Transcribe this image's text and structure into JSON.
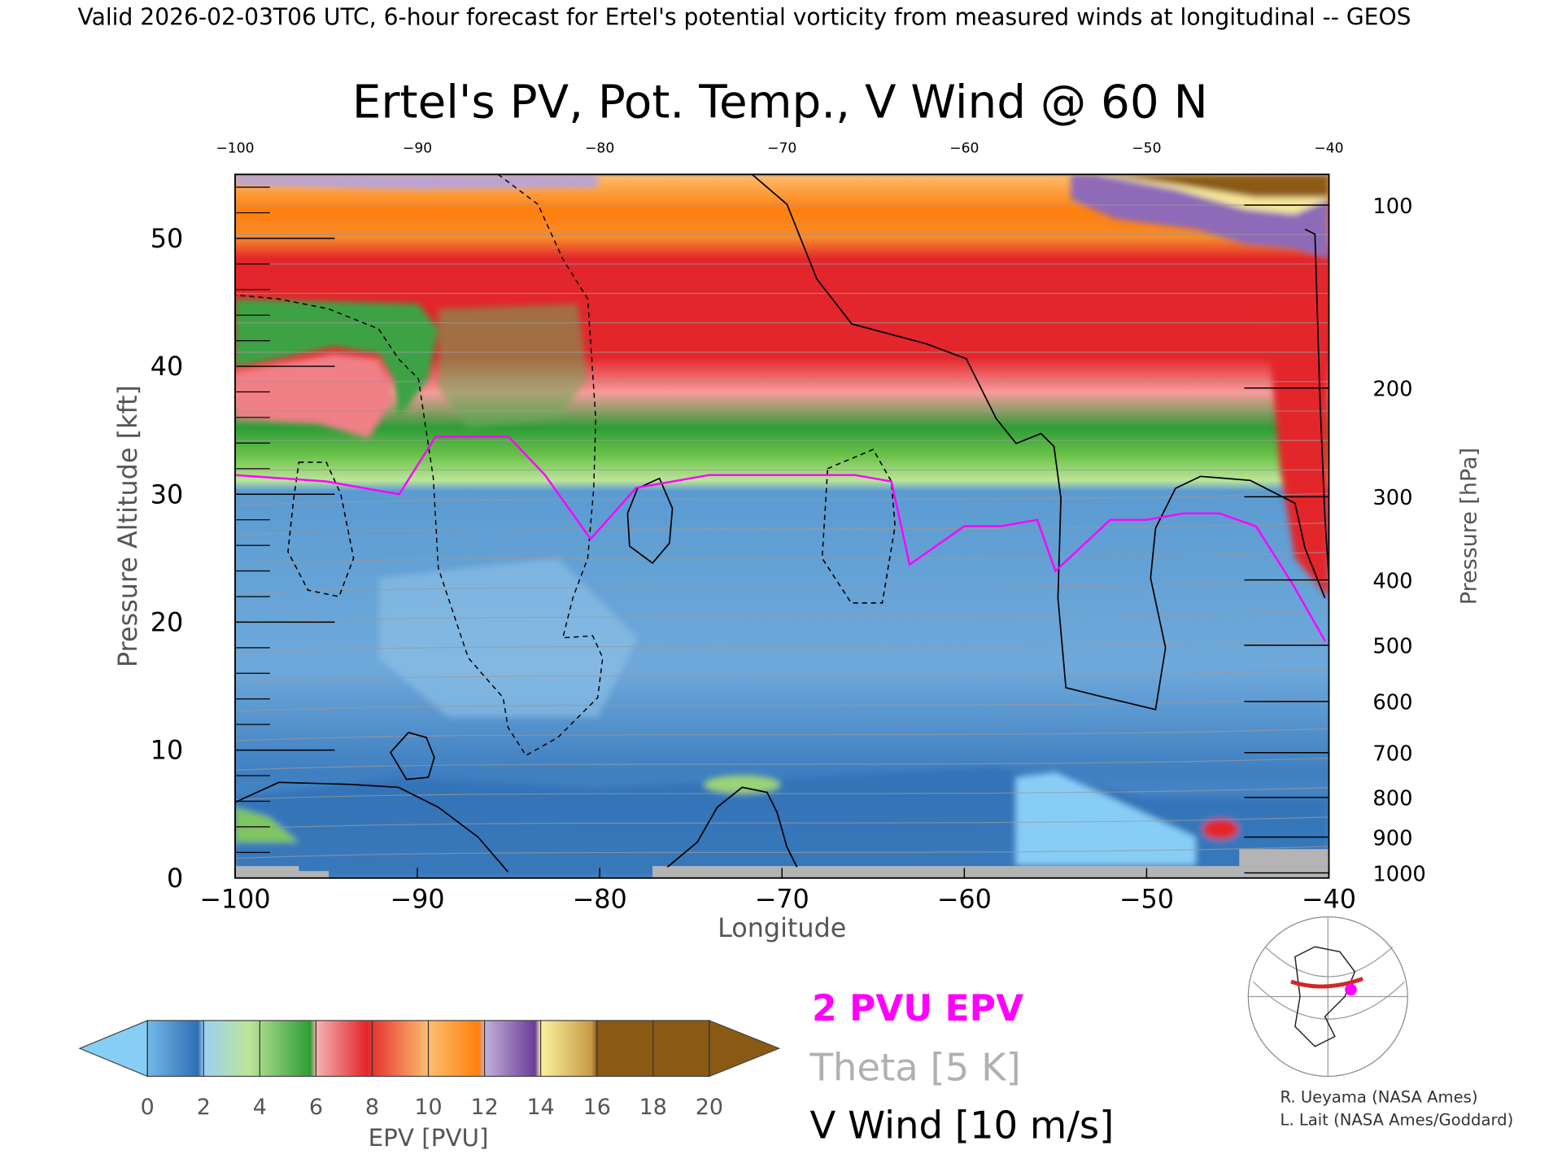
{
  "header": "Valid 2026-02-03T06 UTC, 6-hour forecast for Ertel's potential vorticity from measured winds at longitudinal -- GEOS",
  "chart_data": {
    "type": "heatmap",
    "title": "Ertel's PV, Pot. Temp., V Wind @ 60 N",
    "xlabel": "Longitude",
    "ylabel": "Pressure Altitude [kft]",
    "y2label": "Pressure [hPa]",
    "xlim": [
      -100,
      -40
    ],
    "ylim": [
      0,
      55
    ],
    "x_ticks": [
      -100,
      -90,
      -80,
      -70,
      -60,
      -50,
      -40
    ],
    "x_tick_labels": [
      "−100",
      "−90",
      "−80",
      "−70",
      "−60",
      "−50",
      "−40"
    ],
    "x_top_tick_labels": [
      "−100",
      "−90",
      "−80",
      "−70",
      "−60",
      "−50",
      "−40"
    ],
    "y_ticks": [
      0,
      10,
      20,
      30,
      40,
      50
    ],
    "pressure_ticks": [
      {
        "kft": 52.6,
        "label": "100"
      },
      {
        "kft": 38.3,
        "label": "200"
      },
      {
        "kft": 29.8,
        "label": "300"
      },
      {
        "kft": 23.3,
        "label": "400"
      },
      {
        "kft": 18.2,
        "label": "500"
      },
      {
        "kft": 13.8,
        "label": "600"
      },
      {
        "kft": 9.8,
        "label": "700"
      },
      {
        "kft": 6.3,
        "label": "800"
      },
      {
        "kft": 3.2,
        "label": "900"
      },
      {
        "kft": 0.4,
        "label": "1000"
      }
    ],
    "colorbar": {
      "label": "EPV [PVU]",
      "ticks": [
        "0",
        "2",
        "4",
        "6",
        "8",
        "10",
        "12",
        "14",
        "16",
        "18",
        "20"
      ],
      "colors": [
        "#74b9e6",
        "#2e6fb5",
        "#bde59a",
        "#2e9d36",
        "#f79b9b",
        "#e3262b",
        "#fdbe6f",
        "#ff7f0d",
        "#c4b0d8",
        "#6a3d9a",
        "#fcf2a0",
        "#8a5a14"
      ],
      "under_color": "#87cef7",
      "over_color": "#8a5a14"
    },
    "pv_2pvu_boundary": {
      "lon": [
        -100,
        -95,
        -93,
        -91,
        -89,
        -85,
        -83,
        -80.5,
        -78,
        -74,
        -70,
        -66,
        -64,
        -63,
        -60,
        -58,
        -56,
        -55,
        -52,
        -50,
        -48,
        -46,
        -44,
        -42,
        -40.2
      ],
      "kft": [
        31.5,
        31,
        30.5,
        30,
        34.5,
        34.5,
        31.5,
        26.5,
        30.5,
        31.5,
        31.5,
        31.5,
        31,
        24.5,
        27.5,
        27.5,
        28,
        24,
        28,
        28,
        28.5,
        28.5,
        27.5,
        23,
        18.5
      ]
    },
    "regions": {
      "lower_pv_kft": [
        0,
        30
      ],
      "green_band_kft": [
        30,
        36
      ],
      "red_band_kft": [
        36,
        48
      ],
      "orange_band_kft": [
        48,
        53
      ]
    },
    "contours": [
      {
        "lon": [
          -96.5,
          -95,
          -94.2,
          -93.5,
          -94.3,
          -96,
          -97.1,
          -96.8
        ],
        "kft": [
          32.5,
          32.5,
          30,
          25,
          22,
          22.5,
          25.5,
          29.5
        ]
      },
      {
        "lon": [
          -67.5,
          -65,
          -64,
          -63.8,
          -64.5,
          -66.2,
          -67.8,
          -67.6
        ],
        "kft": [
          32,
          33.5,
          31,
          27.5,
          21.5,
          21.5,
          25,
          29.5
        ]
      }
    ],
    "legend": [
      {
        "label": "2 PVU EPV",
        "color": "#ff00ff"
      },
      {
        "label": "Theta [5 K]",
        "color": "#b0b0b0"
      },
      {
        "label": "V Wind [10 m/s]",
        "color": "#000000"
      }
    ]
  },
  "credits": [
    "R. Ueyama (NASA Ames)",
    "L. Lait (NASA Ames/Goddard)"
  ]
}
